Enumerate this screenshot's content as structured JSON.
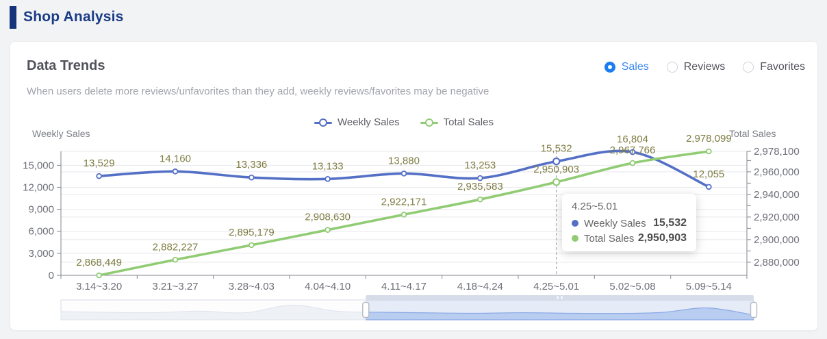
{
  "header": {
    "title": "Shop Analysis"
  },
  "card": {
    "title": "Data Trends",
    "note": "When users delete more reviews/unfavorites than they add, weekly reviews/favorites may be negative",
    "metrics": [
      {
        "label": "Sales",
        "selected": true
      },
      {
        "label": "Reviews",
        "selected": false
      },
      {
        "label": "Favorites",
        "selected": false
      }
    ]
  },
  "chart_data": {
    "type": "line",
    "categories": [
      "3.14~3.20",
      "3.21~3.27",
      "3.28~4.03",
      "4.04~4.10",
      "4.11~4.17",
      "4.18~4.24",
      "4.25~5.01",
      "5.02~5.08",
      "5.09~5.14"
    ],
    "series": [
      {
        "name": "Weekly Sales",
        "axis": "left",
        "color": "#5470c6",
        "values": [
          13529,
          14160,
          13336,
          13133,
          13880,
          13253,
          15532,
          16804,
          12055
        ]
      },
      {
        "name": "Total Sales",
        "axis": "right",
        "color": "#91cc75",
        "values": [
          2868449,
          2882227,
          2895179,
          2908630,
          2922171,
          2935583,
          2950903,
          2967766,
          2978099
        ]
      }
    ],
    "left_axis": {
      "name": "Weekly Sales",
      "tick_values": [
        0,
        3000,
        6000,
        9000,
        12000,
        15000
      ],
      "min": 0,
      "max": 16900
    },
    "right_axis": {
      "name": "Total Sales",
      "tick_values": [
        2880000,
        2900000,
        2920000,
        2940000,
        2960000,
        2978100
      ],
      "min": 2868449,
      "max": 2978100
    },
    "grid": true,
    "legend_position": "top",
    "highlight_index": 6,
    "label_color": "#7f7d42"
  },
  "tooltip": {
    "title": "4.25~5.01",
    "rows": [
      {
        "label": "Weekly Sales",
        "value": "15,532",
        "color": "#5470c6"
      },
      {
        "label": "Total Sales",
        "value": "2,950,903",
        "color": "#91cc75"
      }
    ]
  },
  "slider": {
    "overview": [
      0.42,
      0.38,
      0.36,
      0.44,
      0.36,
      0.74,
      0.43,
      0.38,
      0.35,
      0.33,
      0.36,
      0.33,
      0.32,
      0.37,
      0.6,
      0.24
    ],
    "selection_start": 0.44,
    "selection_end": 1.0
  },
  "colors": {
    "header_navy": "#14337b",
    "title_navy": "#1a3b85",
    "radio_active": "#1c7df2",
    "axis_text": "#6e7079",
    "axis_line": "#82858e",
    "grid_line": "#e6e8ed",
    "series_blue": "#5470c6",
    "series_green": "#91cc75",
    "data_label_olive": "#7f7d42"
  }
}
